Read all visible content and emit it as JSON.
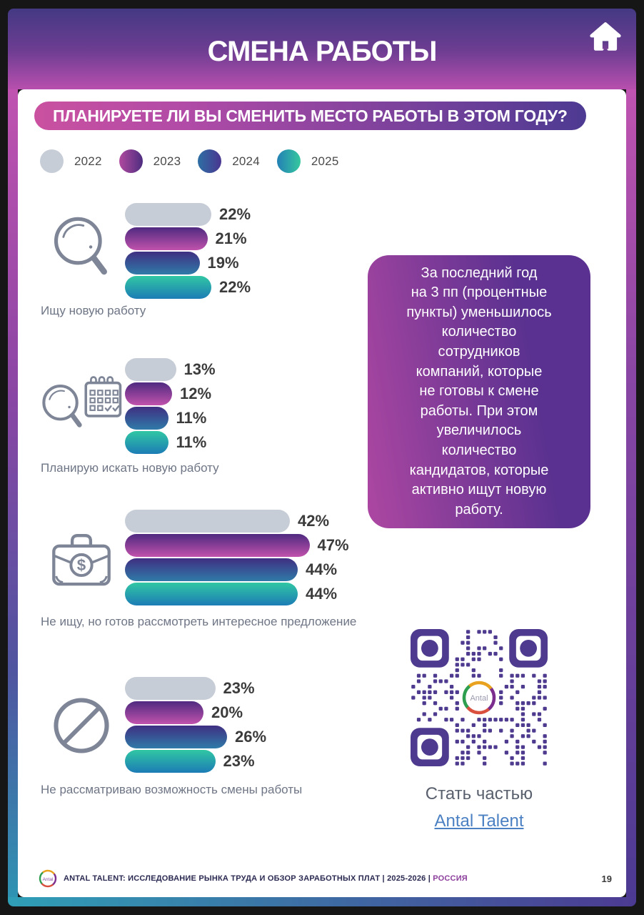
{
  "header": {
    "title": "СМЕНА РАБОТЫ"
  },
  "question_pill": "ПЛАНИРУЕТЕ ЛИ ВЫ СМЕНИТЬ МЕСТО РАБОТЫ В ЭТОМ ГОДУ?",
  "legend": [
    {
      "label": "2022",
      "color_from": "#c7cdd7",
      "color_to": "#c7cdd7"
    },
    {
      "label": "2023",
      "color_from": "#b04a9f",
      "color_to": "#4e2d80"
    },
    {
      "label": "2024",
      "color_from": "#2d6fa4",
      "color_to": "#4a3690"
    },
    {
      "label": "2025",
      "color_from": "#2380b5",
      "color_to": "#36c89e"
    }
  ],
  "chart_data": {
    "type": "bar",
    "orientation": "horizontal",
    "title": "ПЛАНИРУЕТЕ ЛИ ВЫ СМЕНИТЬ МЕСТО РАБОТЫ В ЭТОМ ГОДУ?",
    "unit": "%",
    "legend_position": "top",
    "xlim": [
      0,
      50
    ],
    "categories": [
      "Ищу новую работу",
      "Планирую искать новую работу",
      "Не ищу, но готов рассмотреть интересное предложение",
      "Не рассматриваю возможность смены работы"
    ],
    "category_icons": [
      "search-icon",
      "search-calendar-icon",
      "briefcase-dollar-icon",
      "no-change-icon"
    ],
    "series": [
      {
        "name": "2022",
        "values": [
          22,
          13,
          42,
          23
        ]
      },
      {
        "name": "2023",
        "values": [
          21,
          12,
          47,
          20
        ]
      },
      {
        "name": "2024",
        "values": [
          19,
          11,
          44,
          26
        ]
      },
      {
        "name": "2025",
        "values": [
          22,
          11,
          44,
          23
        ]
      }
    ]
  },
  "info_box": {
    "text": "За последний год\nна 3 пп (процентные\nпункты) уменьшилось\nколичество\nсотрудников\nкомпаний, которые\nне готовы к смене\nработы. При этом\nувеличилось\nколичество\nкандидатов, которые\nактивно ищут новую\nработу."
  },
  "qr_section": {
    "logo_text": "Antal",
    "cta_text": "Стать частью",
    "link_text": "Antal Talent"
  },
  "footer": {
    "logo_text": "Antal",
    "text": "ANTAL TALENT: ИССЛЕДОВАНИЕ РЫНКА ТРУДА И ОБЗОР ЗАРАБОТНЫХ ПЛАТ | 2025-2026 | ",
    "country": "РОССИЯ",
    "page_number": "19"
  },
  "colors": {
    "bar_2022": "#c7cdd7",
    "bar_2023_top": "#4f2a80",
    "bar_2023_bottom": "#c152ac",
    "bar_2024_top": "#3f2f82",
    "bar_2024_bottom": "#2f7ba8",
    "bar_2025_top": "#31c7a4",
    "bar_2025_bottom": "#1c7cb5",
    "qr_purple": "#4e3a8e",
    "accent_pink": "#c053b0",
    "accent_indigo": "#4c3a92",
    "accent_teal": "#2f9fb6",
    "link_blue": "#4b80c3"
  }
}
